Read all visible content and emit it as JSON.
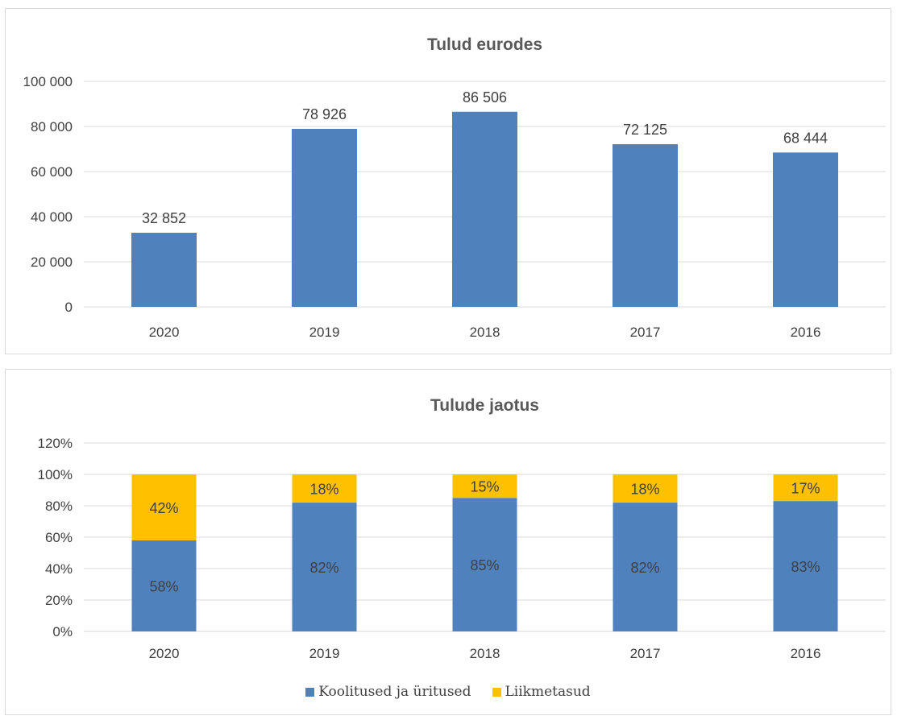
{
  "chart_data": [
    {
      "type": "bar",
      "title": "Tulud eurodes",
      "categories": [
        "2020",
        "2019",
        "2018",
        "2017",
        "2016"
      ],
      "values": [
        32852,
        78926,
        86506,
        72125,
        68444
      ],
      "value_labels": [
        "32 852",
        "78 926",
        "86 506",
        "72 125",
        "68 444"
      ],
      "ylim": [
        0,
        100000
      ],
      "yticks": [
        0,
        20000,
        40000,
        60000,
        80000,
        100000
      ],
      "ytick_labels": [
        "0",
        "20 000",
        "40 000",
        "60 000",
        "80 000",
        "100 000"
      ],
      "grid": true,
      "color": "#4f81bd"
    },
    {
      "type": "bar",
      "stacked": true,
      "title": "Tulude jaotus",
      "categories": [
        "2020",
        "2019",
        "2018",
        "2017",
        "2016"
      ],
      "series": [
        {
          "name": "Koolitused ja üritused",
          "values": [
            58,
            82,
            85,
            82,
            83
          ],
          "labels": [
            "58%",
            "82%",
            "85%",
            "82%",
            "83%"
          ],
          "color": "#4f81bd"
        },
        {
          "name": "Liikmetasud",
          "values": [
            42,
            18,
            15,
            18,
            17
          ],
          "labels": [
            "42%",
            "18%",
            "15%",
            "18%",
            "17%"
          ],
          "color": "#ffc000"
        }
      ],
      "ylim": [
        0,
        120
      ],
      "yticks": [
        0,
        20,
        40,
        60,
        80,
        100,
        120
      ],
      "ytick_labels": [
        "0%",
        "20%",
        "40%",
        "60%",
        "80%",
        "100%",
        "120%"
      ],
      "grid": true,
      "legend": "bottom"
    }
  ]
}
